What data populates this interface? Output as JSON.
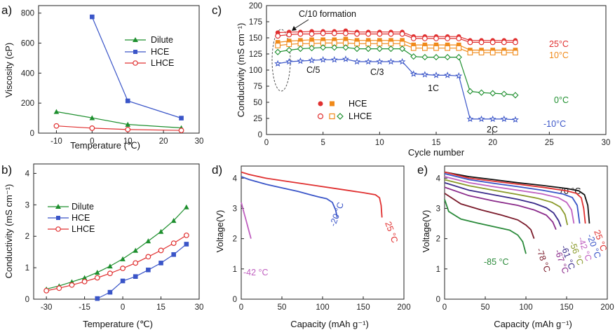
{
  "chart_data": [
    {
      "id": "a",
      "panel_label": "a)",
      "type": "line",
      "xlabel": "Temperature (℃)",
      "ylabel": "Viscosity (cP)",
      "xlim": [
        -15,
        30
      ],
      "ylim": [
        0,
        850
      ],
      "xticks": [
        -10,
        0,
        10,
        20,
        30
      ],
      "yticks": [
        0,
        200,
        400,
        600,
        800
      ],
      "legend": "top-right",
      "series": [
        {
          "name": "Dilute",
          "color": "#1e8f2e",
          "marker": "triangle",
          "x": [
            -10,
            0,
            10,
            25
          ],
          "y": [
            143,
            102,
            58,
            35
          ]
        },
        {
          "name": "HCE",
          "color": "#3a55c8",
          "marker": "square",
          "x": [
            0,
            10,
            25
          ],
          "y": [
            775,
            215,
            100
          ]
        },
        {
          "name": "LHCE",
          "color": "#e03030",
          "marker": "circle-open",
          "x": [
            -10,
            0,
            10,
            25
          ],
          "y": [
            48,
            33,
            24,
            18
          ]
        }
      ]
    },
    {
      "id": "b",
      "panel_label": "b)",
      "type": "line",
      "xlabel": "Temperature (℃)",
      "ylabel": "Conductivity (mS cm⁻¹)",
      "xlim": [
        -35,
        30
      ],
      "ylim": [
        0,
        4.3
      ],
      "xticks": [
        -30,
        -15,
        0,
        15,
        30
      ],
      "yticks": [
        0,
        1,
        2,
        3,
        4
      ],
      "legend": "top-left",
      "series": [
        {
          "name": "Dilute",
          "color": "#1e8f2e",
          "marker": "triangle",
          "x": [
            -30,
            -25,
            -20,
            -15,
            -10,
            -5,
            0,
            5,
            10,
            15,
            20,
            25
          ],
          "y": [
            0.32,
            0.42,
            0.55,
            0.68,
            0.85,
            1.05,
            1.28,
            1.55,
            1.85,
            2.15,
            2.5,
            2.93
          ]
        },
        {
          "name": "HCE",
          "color": "#3a55c8",
          "marker": "square",
          "x": [
            -10,
            -5,
            0,
            5,
            10,
            15,
            20,
            25
          ],
          "y": [
            0.02,
            0.22,
            0.58,
            0.72,
            0.93,
            1.15,
            1.42,
            1.75
          ]
        },
        {
          "name": "LHCE",
          "color": "#e03030",
          "marker": "circle-open",
          "x": [
            -30,
            -25,
            -20,
            -15,
            -10,
            -5,
            0,
            5,
            10,
            15,
            20,
            25
          ],
          "y": [
            0.27,
            0.35,
            0.45,
            0.56,
            0.68,
            0.82,
            0.98,
            1.15,
            1.35,
            1.55,
            1.78,
            2.03
          ]
        }
      ]
    },
    {
      "id": "c",
      "panel_label": "c)",
      "type": "scatter",
      "xlabel": "Cycle number",
      "ylabel": "Conductivity (mS cm⁻¹)",
      "xlim": [
        0,
        30
      ],
      "ylim": [
        0,
        200
      ],
      "xticks": [
        0,
        5,
        10,
        15,
        20,
        25,
        30
      ],
      "yticks": [
        0,
        25,
        50,
        75,
        100,
        125,
        150,
        175,
        200
      ],
      "annotations": [
        "C/10 formation",
        "C/5",
        "C/3",
        "1C",
        "2C"
      ],
      "legend_labels": [
        "HCE",
        "LHCE"
      ],
      "series": [
        {
          "name": "HCE 25°C",
          "color": "#e03030",
          "marker": "circle",
          "x": [
            1,
            2,
            3,
            4,
            5,
            6,
            7,
            8,
            9,
            10,
            11,
            12,
            13,
            14,
            15,
            16,
            17,
            18,
            19,
            20,
            21,
            22
          ],
          "y": [
            158,
            159,
            159,
            160,
            160,
            160,
            161,
            159,
            159,
            159,
            159,
            159,
            152,
            152,
            152,
            152,
            152,
            146,
            146,
            146,
            146,
            146
          ]
        },
        {
          "name": "LHCE 25°C",
          "color": "#e03030",
          "marker": "circle-open",
          "x": [
            1,
            2,
            3,
            4,
            5,
            6,
            7,
            8,
            9,
            10,
            11,
            12,
            13,
            14,
            15,
            16,
            17,
            18,
            19,
            20,
            21,
            22
          ],
          "y": [
            153,
            155,
            156,
            156,
            157,
            157,
            157,
            156,
            156,
            156,
            156,
            156,
            149,
            149,
            149,
            149,
            149,
            143,
            143,
            143,
            143,
            143
          ]
        },
        {
          "name": "HCE 10°C",
          "color": "#f08a1a",
          "marker": "square",
          "x": [
            1,
            2,
            3,
            4,
            5,
            6,
            7,
            8,
            9,
            10,
            11,
            12,
            13,
            14,
            15,
            16,
            17,
            18,
            19,
            20,
            21,
            22
          ],
          "y": [
            143,
            145,
            146,
            147,
            147,
            147,
            148,
            146,
            146,
            146,
            146,
            146,
            139,
            139,
            139,
            139,
            139,
            131,
            131,
            131,
            131,
            131
          ]
        },
        {
          "name": "LHCE 10°C",
          "color": "#f08a1a",
          "marker": "square-open",
          "x": [
            1,
            2,
            3,
            4,
            5,
            6,
            7,
            8,
            9,
            10,
            11,
            12,
            13,
            14,
            15,
            16,
            17,
            18,
            19,
            20,
            21,
            22
          ],
          "y": [
            138,
            140,
            141,
            141,
            142,
            142,
            142,
            141,
            141,
            141,
            141,
            141,
            134,
            134,
            134,
            134,
            134,
            127,
            127,
            127,
            127,
            127
          ]
        },
        {
          "name": "LHCE 0°C",
          "color": "#1e8f2e",
          "marker": "diamond-open",
          "x": [
            1,
            2,
            3,
            4,
            5,
            6,
            7,
            8,
            9,
            10,
            11,
            12,
            13,
            14,
            15,
            16,
            17,
            18,
            19,
            20,
            21,
            22
          ],
          "y": [
            128,
            131,
            133,
            134,
            135,
            135,
            135,
            133,
            133,
            133,
            133,
            133,
            121,
            120,
            120,
            120,
            120,
            67,
            65,
            64,
            63,
            61
          ]
        },
        {
          "name": "LHCE -10°C",
          "color": "#3a55c8",
          "marker": "star-open",
          "x": [
            1,
            2,
            3,
            4,
            5,
            6,
            7,
            8,
            9,
            10,
            11,
            12,
            13,
            14,
            15,
            16,
            17,
            18,
            19,
            20,
            21,
            22
          ],
          "y": [
            110,
            113,
            114,
            115,
            116,
            116,
            117,
            113,
            113,
            113,
            113,
            113,
            94,
            93,
            92,
            92,
            91,
            24,
            24,
            24,
            24,
            23
          ]
        }
      ],
      "temperature_labels": [
        {
          "label": "25°C",
          "color": "#e03030"
        },
        {
          "label": "10°C",
          "color": "#f08a1a"
        },
        {
          "label": "0°C",
          "color": "#1e8f2e"
        },
        {
          "label": "-10°C",
          "color": "#3a55c8"
        }
      ]
    },
    {
      "id": "d",
      "panel_label": "d)",
      "type": "line",
      "xlabel": "Capacity (mAh g⁻¹)",
      "ylabel": "Voltage(V)",
      "xlim": [
        0,
        200
      ],
      "ylim": [
        0,
        4.4
      ],
      "xticks": [
        0,
        50,
        100,
        150,
        200
      ],
      "yticks": [
        0,
        1,
        2,
        3,
        4
      ],
      "series": [
        {
          "name": "25 °C",
          "color": "#e03030",
          "x": [
            0,
            10,
            30,
            60,
            90,
            120,
            150,
            165,
            170,
            172,
            173
          ],
          "y": [
            4.2,
            4.12,
            4.0,
            3.88,
            3.76,
            3.64,
            3.52,
            3.45,
            3.35,
            3.1,
            2.7
          ]
        },
        {
          "name": "-20 °C",
          "color": "#3a55c8",
          "x": [
            0,
            10,
            30,
            50,
            70,
            85,
            95,
            105,
            112,
            116,
            118
          ],
          "y": [
            4.05,
            3.95,
            3.8,
            3.68,
            3.56,
            3.45,
            3.38,
            3.32,
            3.2,
            2.95,
            2.7
          ]
        },
        {
          "name": "-42 °C",
          "color": "#c060c0",
          "x": [
            0,
            2,
            4,
            6,
            8,
            10,
            11,
            12
          ],
          "y": [
            3.2,
            3.0,
            2.8,
            2.6,
            2.4,
            2.2,
            2.1,
            2.0
          ]
        }
      ]
    },
    {
      "id": "e",
      "panel_label": "e)",
      "type": "line",
      "xlabel": "Capacity (mAh g⁻¹)",
      "ylabel": "Voltage(V)",
      "xlim": [
        0,
        200
      ],
      "ylim": [
        0,
        4.4
      ],
      "xticks": [
        0,
        50,
        100,
        150,
        200
      ],
      "yticks": [
        0,
        1,
        2,
        3,
        4
      ],
      "series": [
        {
          "name": "70 °C",
          "color": "#111111",
          "x": [
            0,
            30,
            60,
            90,
            120,
            150,
            165,
            172,
            176,
            178
          ],
          "y": [
            4.2,
            4.05,
            3.95,
            3.85,
            3.76,
            3.66,
            3.58,
            3.45,
            3.1,
            2.5
          ]
        },
        {
          "name": "25 °C",
          "color": "#e03030",
          "x": [
            0,
            30,
            60,
            90,
            120,
            150,
            162,
            168,
            171,
            173
          ],
          "y": [
            4.2,
            4.0,
            3.9,
            3.8,
            3.7,
            3.58,
            3.5,
            3.35,
            3.0,
            2.5
          ]
        },
        {
          "name": "-20 °C",
          "color": "#3a55c8",
          "x": [
            0,
            30,
            60,
            90,
            120,
            145,
            157,
            163,
            166
          ],
          "y": [
            4.15,
            3.95,
            3.83,
            3.72,
            3.6,
            3.48,
            3.36,
            3.1,
            2.5
          ]
        },
        {
          "name": "-42 °C",
          "color": "#c060c0",
          "x": [
            0,
            30,
            60,
            90,
            120,
            140,
            150,
            156,
            159
          ],
          "y": [
            4.05,
            3.85,
            3.72,
            3.6,
            3.48,
            3.35,
            3.2,
            2.95,
            2.5
          ]
        },
        {
          "name": "-56 °C",
          "color": "#8a9a2a",
          "x": [
            0,
            30,
            60,
            90,
            115,
            132,
            142,
            148,
            151
          ],
          "y": [
            3.95,
            3.75,
            3.6,
            3.46,
            3.33,
            3.2,
            3.05,
            2.8,
            2.45
          ]
        },
        {
          "name": "-61 °C",
          "color": "#3a2a8a",
          "x": [
            0,
            30,
            60,
            90,
            110,
            125,
            134,
            140,
            143
          ],
          "y": [
            3.85,
            3.6,
            3.45,
            3.3,
            3.17,
            3.02,
            2.85,
            2.6,
            2.4
          ]
        },
        {
          "name": "-67 °C",
          "color": "#8a2a8a",
          "x": [
            0,
            30,
            60,
            90,
            110,
            125,
            133,
            137
          ],
          "y": [
            3.7,
            3.42,
            3.25,
            3.1,
            2.95,
            2.78,
            2.55,
            2.3
          ]
        },
        {
          "name": "-78 °C",
          "color": "#7a1a2a",
          "x": [
            0,
            20,
            45,
            70,
            90,
            100,
            106,
            110
          ],
          "y": [
            3.5,
            3.15,
            2.95,
            2.78,
            2.62,
            2.45,
            2.3,
            2.0
          ]
        },
        {
          "name": "-85 °C",
          "color": "#2a8a3a",
          "x": [
            0,
            5,
            20,
            40,
            60,
            80,
            90,
            96,
            100
          ],
          "y": [
            3.3,
            2.9,
            2.65,
            2.52,
            2.4,
            2.28,
            2.12,
            1.9,
            1.5
          ]
        }
      ]
    }
  ]
}
